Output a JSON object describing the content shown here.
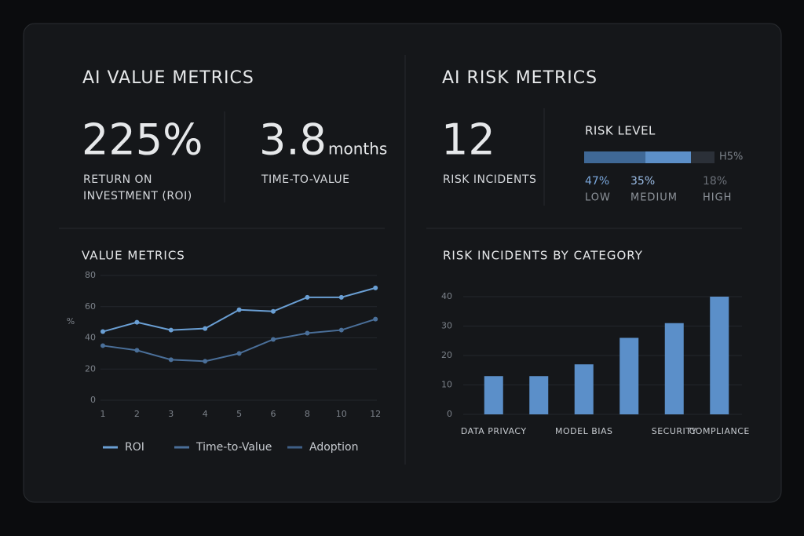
{
  "value_metrics": {
    "title": "AI VALUE METRICS",
    "roi": {
      "value": "225%",
      "label_line1": "RETURN ON",
      "label_line2": "INVESTMENT (ROI)"
    },
    "time_to_value": {
      "value": "3.8",
      "unit": "months",
      "label": "TIME-TO-VALUE"
    }
  },
  "risk_metrics": {
    "title": "AI RISK METRICS",
    "incidents": {
      "value": "12",
      "label": "RISK INCIDENTS"
    },
    "risk_level": {
      "title": "RISK LEVEL",
      "note": "H5%",
      "segments": [
        {
          "name": "LOW",
          "value": 47,
          "label": "47%",
          "color": "#3f6896"
        },
        {
          "name": "MEDIUM",
          "value": 35,
          "label": "35%",
          "color": "#5c8fc8"
        },
        {
          "name": "HIGH",
          "value": 18,
          "label": "18%",
          "color": "#2b3038"
        }
      ]
    }
  },
  "chart_data": [
    {
      "type": "line",
      "title": "VALUE METRICS",
      "y_label": "%",
      "categories": [
        "1",
        "2",
        "3",
        "4",
        "5",
        "6",
        "8",
        "10",
        "12"
      ],
      "series": [
        {
          "name": "ROI",
          "color": "#6a9fd4",
          "values": [
            44,
            50,
            45,
            46,
            58,
            57,
            66,
            66,
            72
          ]
        },
        {
          "name": "Time-to-Value",
          "color": "#4a6f99",
          "values": [
            35,
            32,
            26,
            25,
            30,
            39,
            43,
            45,
            52
          ]
        },
        {
          "name": "Adoption",
          "color": "#3e5f86",
          "values": [
            null,
            null,
            null,
            null,
            null,
            null,
            null,
            null,
            null
          ]
        }
      ],
      "ylim": [
        0,
        80
      ],
      "yticks": [
        0,
        20,
        40,
        60,
        80
      ],
      "grid": true
    },
    {
      "type": "bar",
      "title": "RISK INCIDENTS BY CATEGORY",
      "categories": [
        "DATA PRIVACY",
        null,
        "MODEL BIAS",
        null,
        "SECURITY",
        "COMPLIANCE"
      ],
      "values": [
        13,
        13,
        17,
        26,
        31,
        40
      ],
      "color": "#5b8fc9",
      "ylim": [
        0,
        40
      ],
      "yticks": [
        0,
        10,
        20,
        30,
        40
      ],
      "grid": true
    }
  ]
}
